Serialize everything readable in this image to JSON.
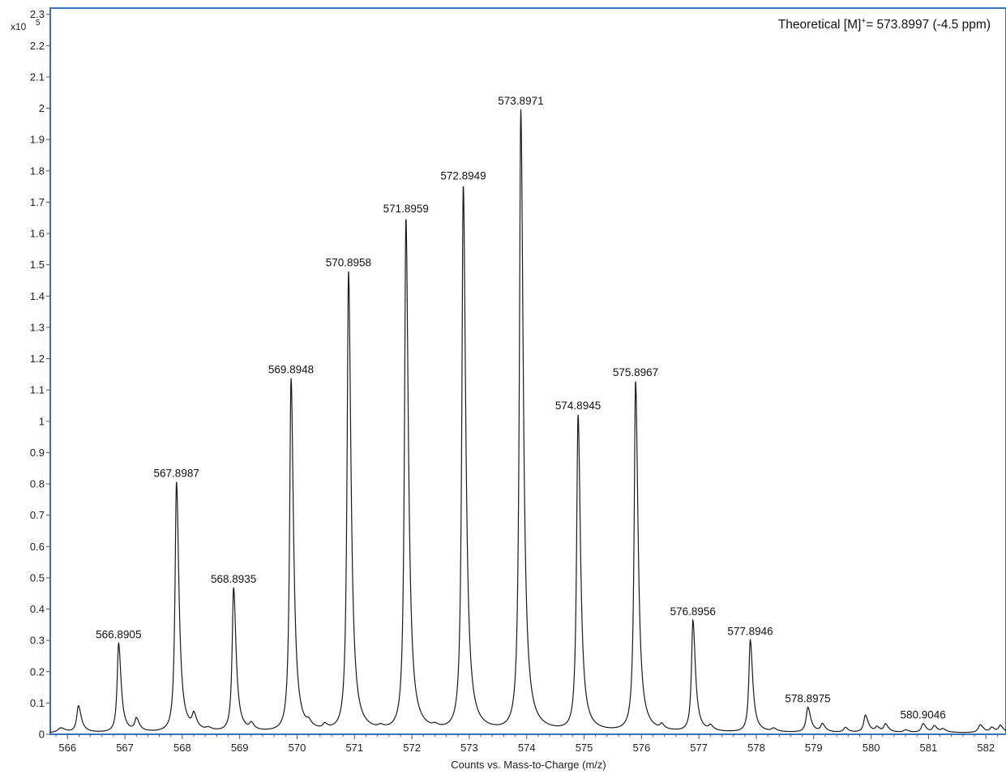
{
  "chart_data": {
    "type": "line",
    "title": "",
    "annotation": {
      "prefix": "Theoretical [M]",
      "superscript": "+",
      "suffix": "= 573.8997 (-4.5 ppm)"
    },
    "xlabel": "Counts vs. Mass-to-Charge (m/z)",
    "ylabel": "",
    "y_multiplier": {
      "base": "x10",
      "exponent": "5"
    },
    "xlim": [
      565.7,
      582.35
    ],
    "ylim": [
      0,
      2.32
    ],
    "x_ticks": [
      566,
      567,
      568,
      569,
      570,
      571,
      572,
      573,
      574,
      575,
      576,
      577,
      578,
      579,
      580,
      581,
      582
    ],
    "x_tick_labels": [
      "566",
      "567",
      "568",
      "569",
      "570",
      "571",
      "572",
      "573",
      "574",
      "575",
      "576",
      "577",
      "578",
      "579",
      "580",
      "581",
      "582"
    ],
    "y_ticks": [
      0,
      0.1,
      0.2,
      0.3,
      0.4,
      0.5,
      0.6,
      0.7,
      0.8,
      0.9,
      1,
      1.1,
      1.2,
      1.3,
      1.4,
      1.5,
      1.6,
      1.7,
      1.8,
      1.9,
      2,
      2.1,
      2.2,
      2.3
    ],
    "y_tick_labels": [
      "0",
      "0.1",
      "0.2",
      "0.3",
      "0.4",
      "0.5",
      "0.6",
      "0.7",
      "0.8",
      "0.9",
      "1",
      "1.1",
      "1.2",
      "1.3",
      "1.4",
      "1.5",
      "1.6",
      "1.7",
      "1.8",
      "1.9",
      "2",
      "2.1",
      "2.2",
      "2.3"
    ],
    "grid": false,
    "series": [
      {
        "peaks": [
          {
            "x": 565.88,
            "y": 0.015,
            "w": 0.06
          },
          {
            "x": 566.19,
            "y": 0.085,
            "w": 0.035
          },
          {
            "x": 566.8905,
            "y": 0.285,
            "w": 0.03,
            "label": "566.8905"
          },
          {
            "x": 567.2,
            "y": 0.04,
            "w": 0.035
          },
          {
            "x": 567.8987,
            "y": 0.8,
            "w": 0.03,
            "label": "567.8987"
          },
          {
            "x": 568.2,
            "y": 0.045,
            "w": 0.035
          },
          {
            "x": 568.45,
            "y": 0.008,
            "w": 0.05
          },
          {
            "x": 568.8935,
            "y": 0.46,
            "w": 0.03,
            "label": "568.8935"
          },
          {
            "x": 569.2,
            "y": 0.02,
            "w": 0.035
          },
          {
            "x": 569.8948,
            "y": 1.13,
            "w": 0.03,
            "label": "569.8948"
          },
          {
            "x": 570.2,
            "y": 0.015,
            "w": 0.035
          },
          {
            "x": 570.48,
            "y": 0.015,
            "w": 0.035
          },
          {
            "x": 570.8958,
            "y": 1.47,
            "w": 0.03,
            "label": "570.8958"
          },
          {
            "x": 571.45,
            "y": 0.008,
            "w": 0.04
          },
          {
            "x": 571.8959,
            "y": 1.64,
            "w": 0.03,
            "label": "571.8959"
          },
          {
            "x": 572.4,
            "y": 0.008,
            "w": 0.04
          },
          {
            "x": 572.8949,
            "y": 1.745,
            "w": 0.03,
            "label": "572.8949"
          },
          {
            "x": 573.8971,
            "y": 1.985,
            "w": 0.03,
            "label": "573.8971"
          },
          {
            "x": 574.8945,
            "y": 1.01,
            "w": 0.03,
            "label": "574.8945"
          },
          {
            "x": 575.8967,
            "y": 1.12,
            "w": 0.03,
            "label": "575.8967"
          },
          {
            "x": 576.35,
            "y": 0.015,
            "w": 0.03
          },
          {
            "x": 576.8956,
            "y": 0.355,
            "w": 0.03,
            "label": "576.8956"
          },
          {
            "x": 577.2,
            "y": 0.015,
            "w": 0.035
          },
          {
            "x": 577.8946,
            "y": 0.295,
            "w": 0.03,
            "label": "577.8946"
          },
          {
            "x": 578.3,
            "y": 0.01,
            "w": 0.04
          },
          {
            "x": 578.8975,
            "y": 0.08,
            "w": 0.035,
            "label": "578.8975"
          },
          {
            "x": 579.15,
            "y": 0.025,
            "w": 0.035
          },
          {
            "x": 579.55,
            "y": 0.015,
            "w": 0.035
          },
          {
            "x": 579.9,
            "y": 0.055,
            "w": 0.035
          },
          {
            "x": 580.1,
            "y": 0.015,
            "w": 0.035
          },
          {
            "x": 580.25,
            "y": 0.025,
            "w": 0.035
          },
          {
            "x": 580.6,
            "y": 0.008,
            "w": 0.04
          },
          {
            "x": 580.9046,
            "y": 0.028,
            "w": 0.035,
            "label": "580.9046"
          },
          {
            "x": 581.1,
            "y": 0.02,
            "w": 0.035
          },
          {
            "x": 581.25,
            "y": 0.01,
            "w": 0.04
          },
          {
            "x": 581.9,
            "y": 0.025,
            "w": 0.04
          },
          {
            "x": 582.1,
            "y": 0.015,
            "w": 0.035
          },
          {
            "x": 582.25,
            "y": 0.022,
            "w": 0.035
          }
        ]
      }
    ],
    "colors": {
      "line": "#1a1a1a",
      "frame": "#3b6fc2",
      "axis": "#555555"
    }
  }
}
